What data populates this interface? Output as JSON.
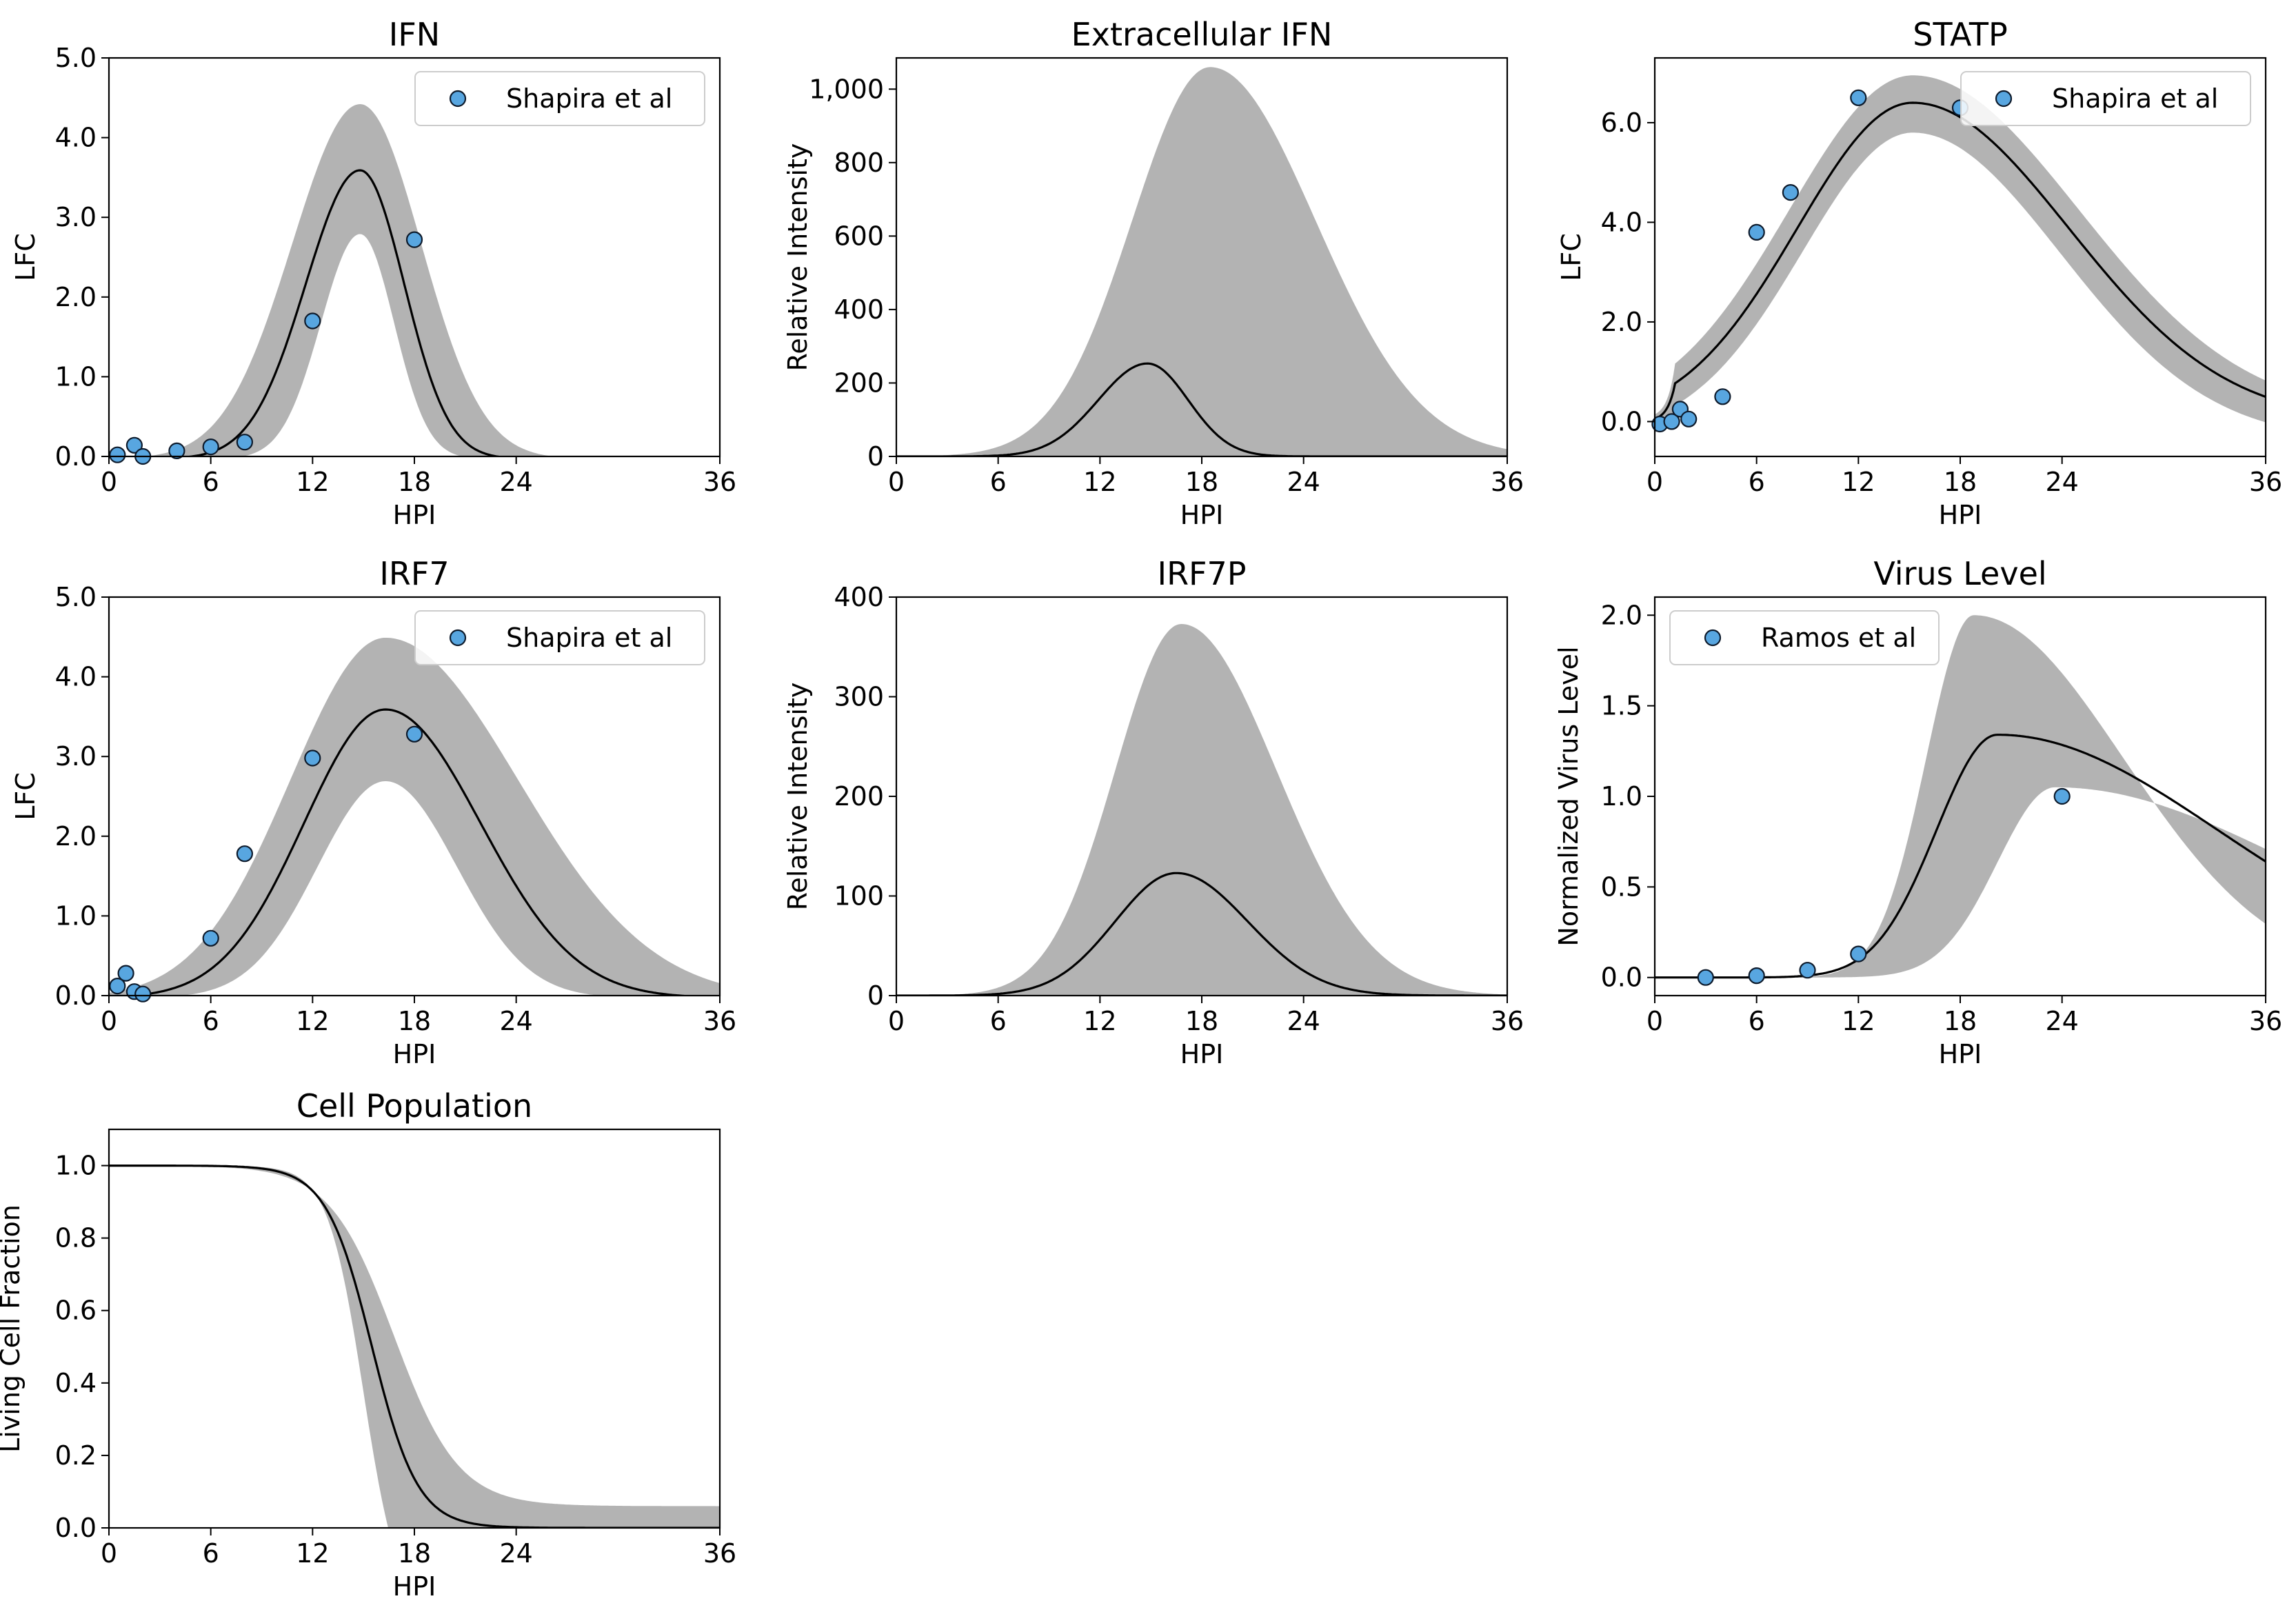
{
  "colors": {
    "band": "#b3b3b3",
    "line": "#000000",
    "marker_fill": "#58a6e0",
    "marker_edge": "#0d1a2b",
    "legend_border": "#cccccc"
  },
  "chart_data": [
    {
      "id": "ifn",
      "type": "line",
      "title": "IFN",
      "xlabel": "HPI",
      "ylabel": "LFC",
      "xlim": [
        0,
        36
      ],
      "ylim": [
        0,
        5
      ],
      "xticks": [
        0,
        6,
        12,
        18,
        24,
        36
      ],
      "xtick_labels": [
        "0",
        "6",
        "12",
        "18",
        "24",
        "36"
      ],
      "yticks": [
        0,
        1,
        2,
        3,
        4,
        5
      ],
      "ytick_labels": [
        "0.0",
        "1.0",
        "2.0",
        "3.0",
        "4.0",
        "5.0"
      ],
      "grid": false,
      "legend_position": "top-right",
      "mean": {
        "type": "gauss",
        "amp": 3.62,
        "peak": 14.8,
        "sl": 3.2,
        "sr": 2.6,
        "cut": 0.03
      },
      "band_low": {
        "type": "gauss",
        "amp": 2.82,
        "peak": 14.8,
        "sl": 2.3,
        "sr": 2.0,
        "cut": 0.03
      },
      "band_high": {
        "type": "gauss",
        "amp": 4.45,
        "peak": 14.8,
        "sl": 4.0,
        "sr": 3.6,
        "cut": 0.03
      },
      "points": {
        "name": "Shapira et al",
        "x": [
          0.5,
          1.5,
          2,
          4,
          6,
          8,
          12,
          18
        ],
        "y": [
          0.02,
          0.14,
          0.0,
          0.07,
          0.12,
          0.18,
          1.7,
          2.72
        ]
      }
    },
    {
      "id": "extracellular-ifn",
      "type": "line",
      "title": "Extracellular IFN",
      "xlabel": "HPI",
      "ylabel": "Relative Intensity",
      "xlim": [
        0,
        36
      ],
      "ylim": [
        0,
        1085
      ],
      "xticks": [
        0,
        6,
        12,
        18,
        24,
        36
      ],
      "xtick_labels": [
        "0",
        "6",
        "12",
        "18",
        "24",
        "36"
      ],
      "yticks": [
        0,
        200,
        400,
        600,
        800,
        1000
      ],
      "ytick_labels": [
        "0",
        "200",
        "400",
        "600",
        "800",
        "1,000"
      ],
      "grid": false,
      "mean": {
        "type": "gauss",
        "amp": 253,
        "peak": 14.8,
        "sl": 2.9,
        "sr": 2.4
      },
      "band_low": {
        "type": "gauss",
        "amp": 0,
        "peak": 15,
        "sl": 3,
        "sr": 3
      },
      "band_high": {
        "type": "gauss",
        "amp": 1060,
        "peak": 18.5,
        "sl": 4.6,
        "sr": 6.2
      }
    },
    {
      "id": "statp",
      "type": "line",
      "title": "STATP",
      "xlabel": "HPI",
      "ylabel": "LFC",
      "xlim": [
        0,
        36
      ],
      "ylim": [
        -0.7,
        7.3
      ],
      "xticks": [
        0,
        6,
        12,
        18,
        24,
        36
      ],
      "xtick_labels": [
        "0",
        "6",
        "12",
        "18",
        "24",
        "36"
      ],
      "yticks": [
        0,
        2,
        4,
        6
      ],
      "ytick_labels": [
        "0.0",
        "2.0",
        "4.0",
        "6.0"
      ],
      "grid": false,
      "legend_position": "top-right",
      "mean": {
        "type": "gauss",
        "amp": 6.4,
        "peak": 15.2,
        "sl": 6.8,
        "sr": 9.2,
        "x0": 1.2
      },
      "band_low": {
        "type": "gauss",
        "amp": 5.8,
        "peak": 15.2,
        "sl": 6.4,
        "sr": 8.6,
        "x0": 1.6,
        "offset": -0.42
      },
      "band_high": {
        "type": "gauss",
        "amp": 6.95,
        "peak": 15.2,
        "sl": 7.3,
        "sr": 9.8,
        "x0": 1.2,
        "offset": 0.12
      },
      "points": {
        "name": "Shapira et al",
        "x": [
          0.3,
          1,
          1.5,
          2,
          4,
          6,
          8,
          12,
          18
        ],
        "y": [
          -0.05,
          0.0,
          0.25,
          0.05,
          0.5,
          3.8,
          4.6,
          6.5,
          6.3
        ]
      }
    },
    {
      "id": "irf7",
      "type": "line",
      "title": "IRF7",
      "xlabel": "HPI",
      "ylabel": "LFC",
      "xlim": [
        0,
        36
      ],
      "ylim": [
        0,
        5
      ],
      "xticks": [
        0,
        6,
        12,
        18,
        24,
        36
      ],
      "xtick_labels": [
        "0",
        "6",
        "12",
        "18",
        "24",
        "36"
      ],
      "yticks": [
        0,
        1,
        2,
        3,
        4,
        5
      ],
      "ytick_labels": [
        "0.0",
        "1.0",
        "2.0",
        "3.0",
        "4.0",
        "5.0"
      ],
      "grid": false,
      "legend_position": "top-right",
      "mean": {
        "type": "gauss",
        "amp": 3.62,
        "peak": 16.3,
        "sl": 4.8,
        "sr": 5.6,
        "cut": 0.03
      },
      "band_low": {
        "type": "gauss",
        "amp": 2.72,
        "peak": 16.3,
        "sl": 4.0,
        "sr": 4.2,
        "cut": 0.03
      },
      "band_high": {
        "type": "gauss",
        "amp": 4.52,
        "peak": 16.3,
        "sl": 5.6,
        "sr": 7.8,
        "cut": 0.03
      },
      "points": {
        "name": "Shapira et al",
        "x": [
          0.5,
          1,
          1.5,
          2,
          6,
          8,
          12,
          18
        ],
        "y": [
          0.12,
          0.28,
          0.05,
          0.02,
          0.72,
          1.78,
          2.98,
          3.28
        ]
      }
    },
    {
      "id": "irf7p",
      "type": "line",
      "title": "IRF7P",
      "xlabel": "HPI",
      "ylabel": "Relative Intensity",
      "xlim": [
        0,
        36
      ],
      "ylim": [
        0,
        400
      ],
      "xticks": [
        0,
        6,
        12,
        18,
        24,
        36
      ],
      "xtick_labels": [
        "0",
        "6",
        "12",
        "18",
        "24",
        "36"
      ],
      "yticks": [
        0,
        100,
        200,
        300,
        400
      ],
      "ytick_labels": [
        "0",
        "100",
        "200",
        "300",
        "400"
      ],
      "grid": false,
      "mean": {
        "type": "gauss",
        "amp": 123,
        "peak": 16.5,
        "sl": 3.6,
        "sr": 4.2
      },
      "band_low": {
        "type": "gauss",
        "amp": 0,
        "peak": 16.5,
        "sl": 3,
        "sr": 3
      },
      "band_high": {
        "type": "gauss",
        "amp": 373,
        "peak": 16.8,
        "sl": 3.9,
        "sr": 5.6
      }
    },
    {
      "id": "virus-level",
      "type": "line",
      "title": "Virus Level",
      "xlabel": "HPI",
      "ylabel": "Normalized Virus Level",
      "xlim": [
        0,
        36
      ],
      "ylim": [
        -0.1,
        2.1
      ],
      "xticks": [
        0,
        6,
        12,
        18,
        24,
        36
      ],
      "xtick_labels": [
        "0",
        "6",
        "12",
        "18",
        "24",
        "36"
      ],
      "yticks": [
        0,
        0.5,
        1,
        1.5,
        2
      ],
      "ytick_labels": [
        "0.0",
        "0.5",
        "1.0",
        "1.5",
        "2.0"
      ],
      "grid": false,
      "legend_position": "top-left",
      "mean": {
        "type": "gauss",
        "amp": 1.34,
        "peak": 20.2,
        "sl": 3.6,
        "sr": 13
      },
      "band_low": {
        "type": "gauss",
        "amp": 1.05,
        "peak": 23.6,
        "sl": 3.4,
        "sr": 14
      },
      "band_high": {
        "type": "gauss",
        "amp": 2.0,
        "peak": 18.8,
        "sl": 2.8,
        "sr": 8.8
      },
      "points": {
        "name": "Ramos et al",
        "x": [
          3,
          6,
          9,
          12,
          24
        ],
        "y": [
          0.0,
          0.01,
          0.04,
          0.13,
          1.0
        ]
      }
    },
    {
      "id": "cell-population",
      "type": "line",
      "title": "Cell Population",
      "xlabel": "HPI",
      "ylabel": "Living Cell Fraction",
      "xlim": [
        0,
        36
      ],
      "ylim": [
        0,
        1.1
      ],
      "xticks": [
        0,
        6,
        12,
        18,
        24,
        36
      ],
      "xtick_labels": [
        "0",
        "6",
        "12",
        "18",
        "24",
        "36"
      ],
      "yticks": [
        0,
        0.2,
        0.4,
        0.6,
        0.8,
        1.0
      ],
      "ytick_labels": [
        "0.0",
        "0.2",
        "0.4",
        "0.6",
        "0.8",
        "1.0"
      ],
      "grid": false,
      "mean": {
        "type": "sigmoid",
        "mid": 15.5,
        "scale": 1.35,
        "top": 1.0,
        "bottom": 0.0
      },
      "band_low": {
        "type": "sigmoid",
        "mid": 15.0,
        "scale": 1.05,
        "top": 1.0,
        "bottom": -0.25
      },
      "band_high": {
        "type": "sigmoid",
        "mid": 16.8,
        "scale": 1.9,
        "top": 1.0,
        "bottom": 0.06
      }
    }
  ]
}
